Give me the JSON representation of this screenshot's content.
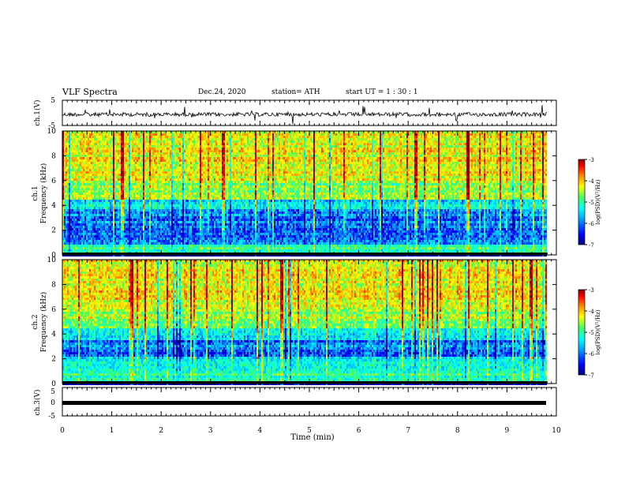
{
  "header": {
    "title": "VLF Spectra",
    "date": "Dec.24, 2020",
    "station": "station= ATH",
    "start": "start  UT =   1 : 30 : 1"
  },
  "chart_data": [
    {
      "type": "line",
      "panel": "waveform-ch1",
      "ylabel": "ch.1(V)",
      "ylim": [
        -5,
        5
      ],
      "yticks": [
        "5",
        "-5"
      ],
      "xlim": [
        0,
        10
      ],
      "baseline": 0,
      "description_values": "noisy waveform around 0 V with amplitude ~1 V and sporadic spikes up to ~4 V"
    },
    {
      "type": "heatmap",
      "panel": "spectrogram-ch1",
      "ylabel": "ch.1\nFrequency  (kHz)",
      "ylim": [
        0,
        10
      ],
      "yticks": [
        "0",
        "2",
        "4",
        "6",
        "8",
        "10"
      ],
      "xlim": [
        0,
        10
      ],
      "colorbar": {
        "label": "log(PSD)(V²/Hz)",
        "range": [
          -7,
          -3
        ],
        "ticks": [
          "-3",
          "-4",
          "-5",
          "-6",
          "-7"
        ]
      }
    },
    {
      "type": "heatmap",
      "panel": "spectrogram-ch2",
      "ylabel": "ch.2\nFrequency  (kHz)",
      "ylim": [
        0,
        10
      ],
      "yticks": [
        "0",
        "2",
        "4",
        "6",
        "8",
        "10"
      ],
      "xlim": [
        0,
        10
      ],
      "colorbar": {
        "label": "log(PSD)(V²/Hz)",
        "range": [
          -7,
          -3
        ],
        "ticks": [
          "-3",
          "-4",
          "-5",
          "-6",
          "-7"
        ]
      }
    },
    {
      "type": "line",
      "panel": "waveform-ch3",
      "ylabel": "ch.3(V)",
      "ylim": [
        -5,
        5
      ],
      "yticks": [
        "5",
        "0",
        "-5"
      ],
      "xlim": [
        0,
        10
      ],
      "baseline": 0
    }
  ],
  "xaxis": {
    "label": "Time  (min)",
    "ticks": [
      "0",
      "1",
      "2",
      "3",
      "4",
      "5",
      "6",
      "7",
      "8",
      "9",
      "10"
    ],
    "data_end": 9.82
  },
  "colors": {
    "scale": [
      "#00007f",
      "#0000ff",
      "#00a0ff",
      "#00ffff",
      "#40ff60",
      "#ffff00",
      "#ff9000",
      "#ff0000",
      "#8b0000"
    ]
  }
}
